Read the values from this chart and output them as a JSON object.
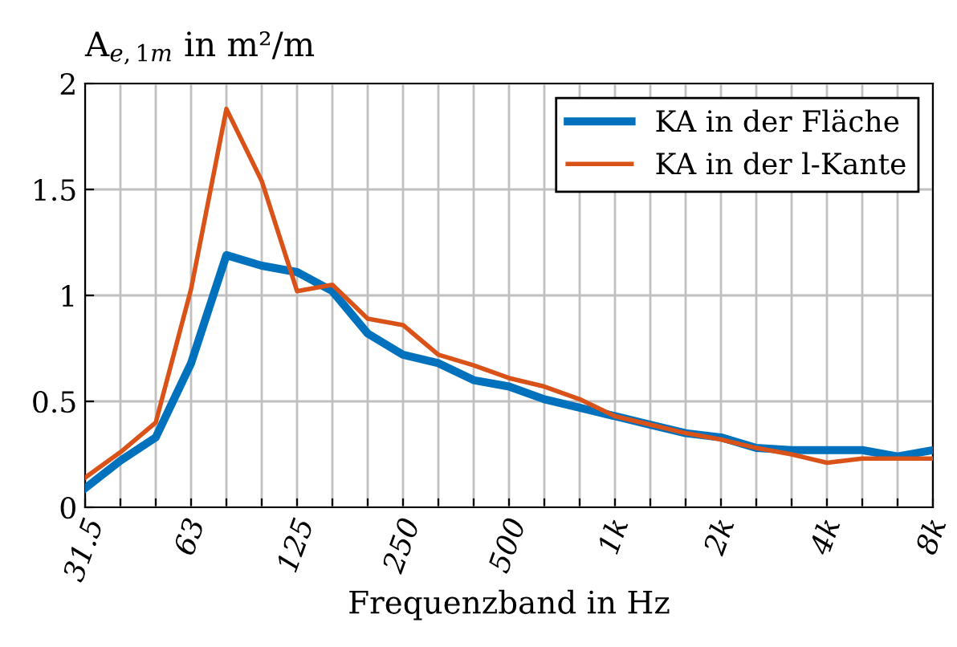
{
  "chart_data": {
    "type": "line",
    "ylabel": "A$_{e,1m}$ in m²/m",
    "xlabel": "Frequenzband in Hz",
    "categories": [
      "31.5",
      null,
      null,
      "63",
      null,
      null,
      "125",
      null,
      null,
      "250",
      null,
      null,
      "500",
      null,
      null,
      "1k",
      null,
      null,
      "2k",
      null,
      null,
      "4k",
      null,
      null,
      "8k"
    ],
    "series": [
      {
        "name": "KA in der Fläche",
        "color": "#0072bd",
        "values": [
          0.09,
          0.22,
          0.33,
          0.68,
          1.19,
          1.14,
          1.11,
          1.02,
          0.82,
          0.72,
          0.68,
          0.6,
          0.57,
          0.51,
          0.47,
          0.43,
          0.39,
          0.35,
          0.33,
          0.28,
          0.27,
          0.27,
          0.27,
          0.24,
          0.27
        ]
      },
      {
        "name": "KA in der l-Kante",
        "color": "#d95319",
        "values": [
          0.14,
          0.26,
          0.4,
          1.03,
          1.88,
          1.54,
          1.02,
          1.05,
          0.89,
          0.86,
          0.72,
          0.67,
          0.61,
          0.57,
          0.51,
          0.43,
          0.39,
          0.35,
          0.32,
          0.28,
          0.25,
          0.21,
          0.23,
          0.23,
          0.23
        ]
      }
    ],
    "ylim": [
      0,
      2
    ],
    "yticks": [
      0,
      0.5,
      1,
      1.5,
      2
    ],
    "grid": true,
    "legend": "top right",
    "marker": "none",
    "line_style": "solid"
  }
}
